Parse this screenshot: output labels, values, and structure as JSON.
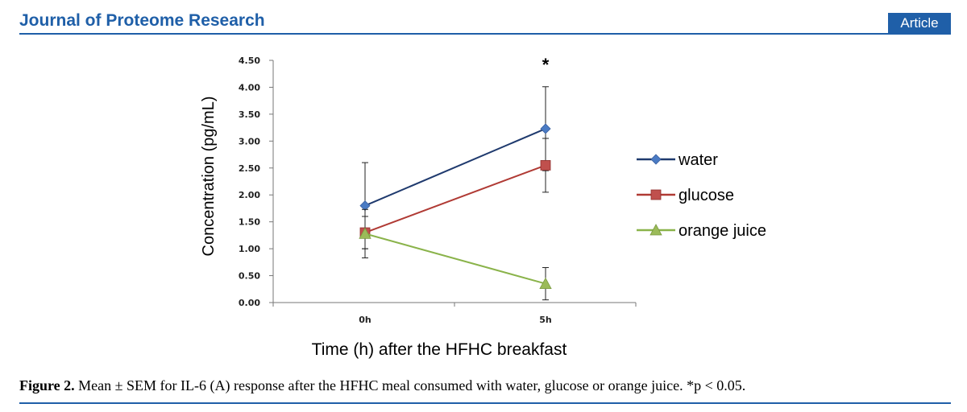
{
  "header": {
    "journal_title": "Journal of Proteome Research",
    "badge": "Article"
  },
  "caption": {
    "label": "Figure 2.",
    "text": "Mean ± SEM for IL-6 (A) response after the HFHC meal consumed with water, glucose or orange juice. *p < 0.05."
  },
  "chart_data": {
    "type": "line",
    "title": "",
    "xlabel": "Time (h) after the HFHC breakfast",
    "ylabel": "Concentration (pg/mL)",
    "categories": [
      "0h",
      "5h"
    ],
    "ylim": [
      0,
      4.5
    ],
    "yticks": [
      "0.00",
      "0.50",
      "1.00",
      "1.50",
      "2.00",
      "2.50",
      "3.00",
      "3.50",
      "4.00",
      "4.50"
    ],
    "grid": false,
    "legend_position": "right",
    "annotation": {
      "text": "*",
      "category": "5h"
    },
    "series": [
      {
        "name": "water",
        "color": "#1f3a6e",
        "marker": "diamond",
        "marker_color": "#4a7bc4",
        "values": [
          1.8,
          3.23
        ],
        "sem": [
          0.8,
          0.78
        ]
      },
      {
        "name": "glucose",
        "color": "#b03a34",
        "marker": "square",
        "marker_color": "#c0504d",
        "values": [
          1.3,
          2.55
        ],
        "sem": [
          0.3,
          0.5
        ]
      },
      {
        "name": "orange juice",
        "color": "#8ab34a",
        "marker": "triangle",
        "marker_color": "#9bbb59",
        "values": [
          1.28,
          0.35
        ],
        "sem": [
          0.45,
          0.3
        ]
      }
    ]
  }
}
